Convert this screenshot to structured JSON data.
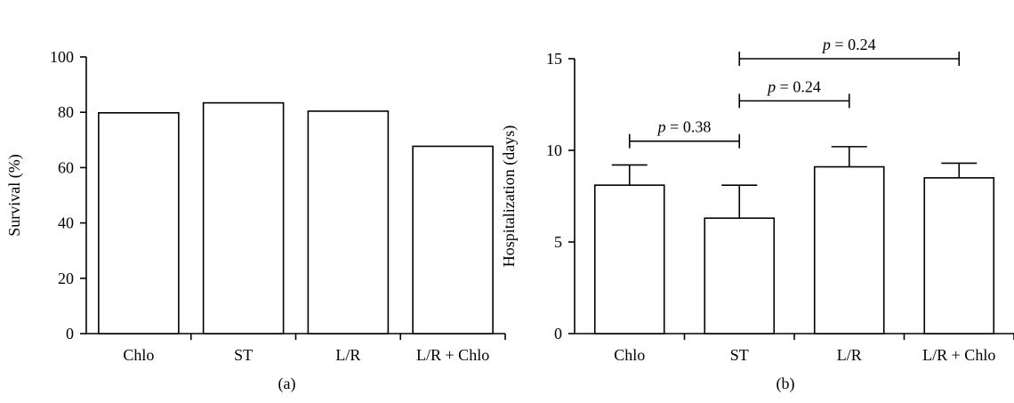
{
  "chart_data": [
    {
      "type": "bar",
      "panel_label": "(a)",
      "categories": [
        "Chlo",
        "ST",
        "L/R",
        "L/R + Chlo"
      ],
      "values": [
        79.8,
        83.4,
        80.4,
        67.7
      ],
      "title": "",
      "xlabel": "",
      "ylabel": "Survival (%)",
      "ylim": [
        0,
        100
      ],
      "yticks": [
        "0",
        "20",
        "40",
        "60",
        "80",
        "100"
      ],
      "grid": false,
      "bar_fill": "#ffffff",
      "bar_stroke": "#000000"
    },
    {
      "type": "bar",
      "panel_label": "(b)",
      "categories": [
        "Chlo",
        "ST",
        "L/R",
        "L/R + Chlo"
      ],
      "values": [
        8.1,
        6.3,
        9.1,
        8.5
      ],
      "error_upper": [
        9.2,
        8.1,
        10.2,
        9.3
      ],
      "title": "",
      "xlabel": "",
      "ylabel": "Hospitalization (days)",
      "ylim": [
        0,
        15
      ],
      "yticks": [
        "0",
        "5",
        "10",
        "15"
      ],
      "grid": false,
      "bar_fill": "#ffffff",
      "bar_stroke": "#000000",
      "comparisons": [
        {
          "from": "Chlo",
          "to": "ST",
          "p_symbol": "p",
          "p_text": " = 0.38",
          "y": 10.5
        },
        {
          "from": "ST",
          "to": "L/R",
          "p_symbol": "p",
          "p_text": " = 0.24",
          "y": 12.7
        },
        {
          "from": "ST",
          "to": "L/R + Chlo",
          "p_symbol": "p",
          "p_text": " = 0.24",
          "y": 15.0
        }
      ]
    }
  ]
}
